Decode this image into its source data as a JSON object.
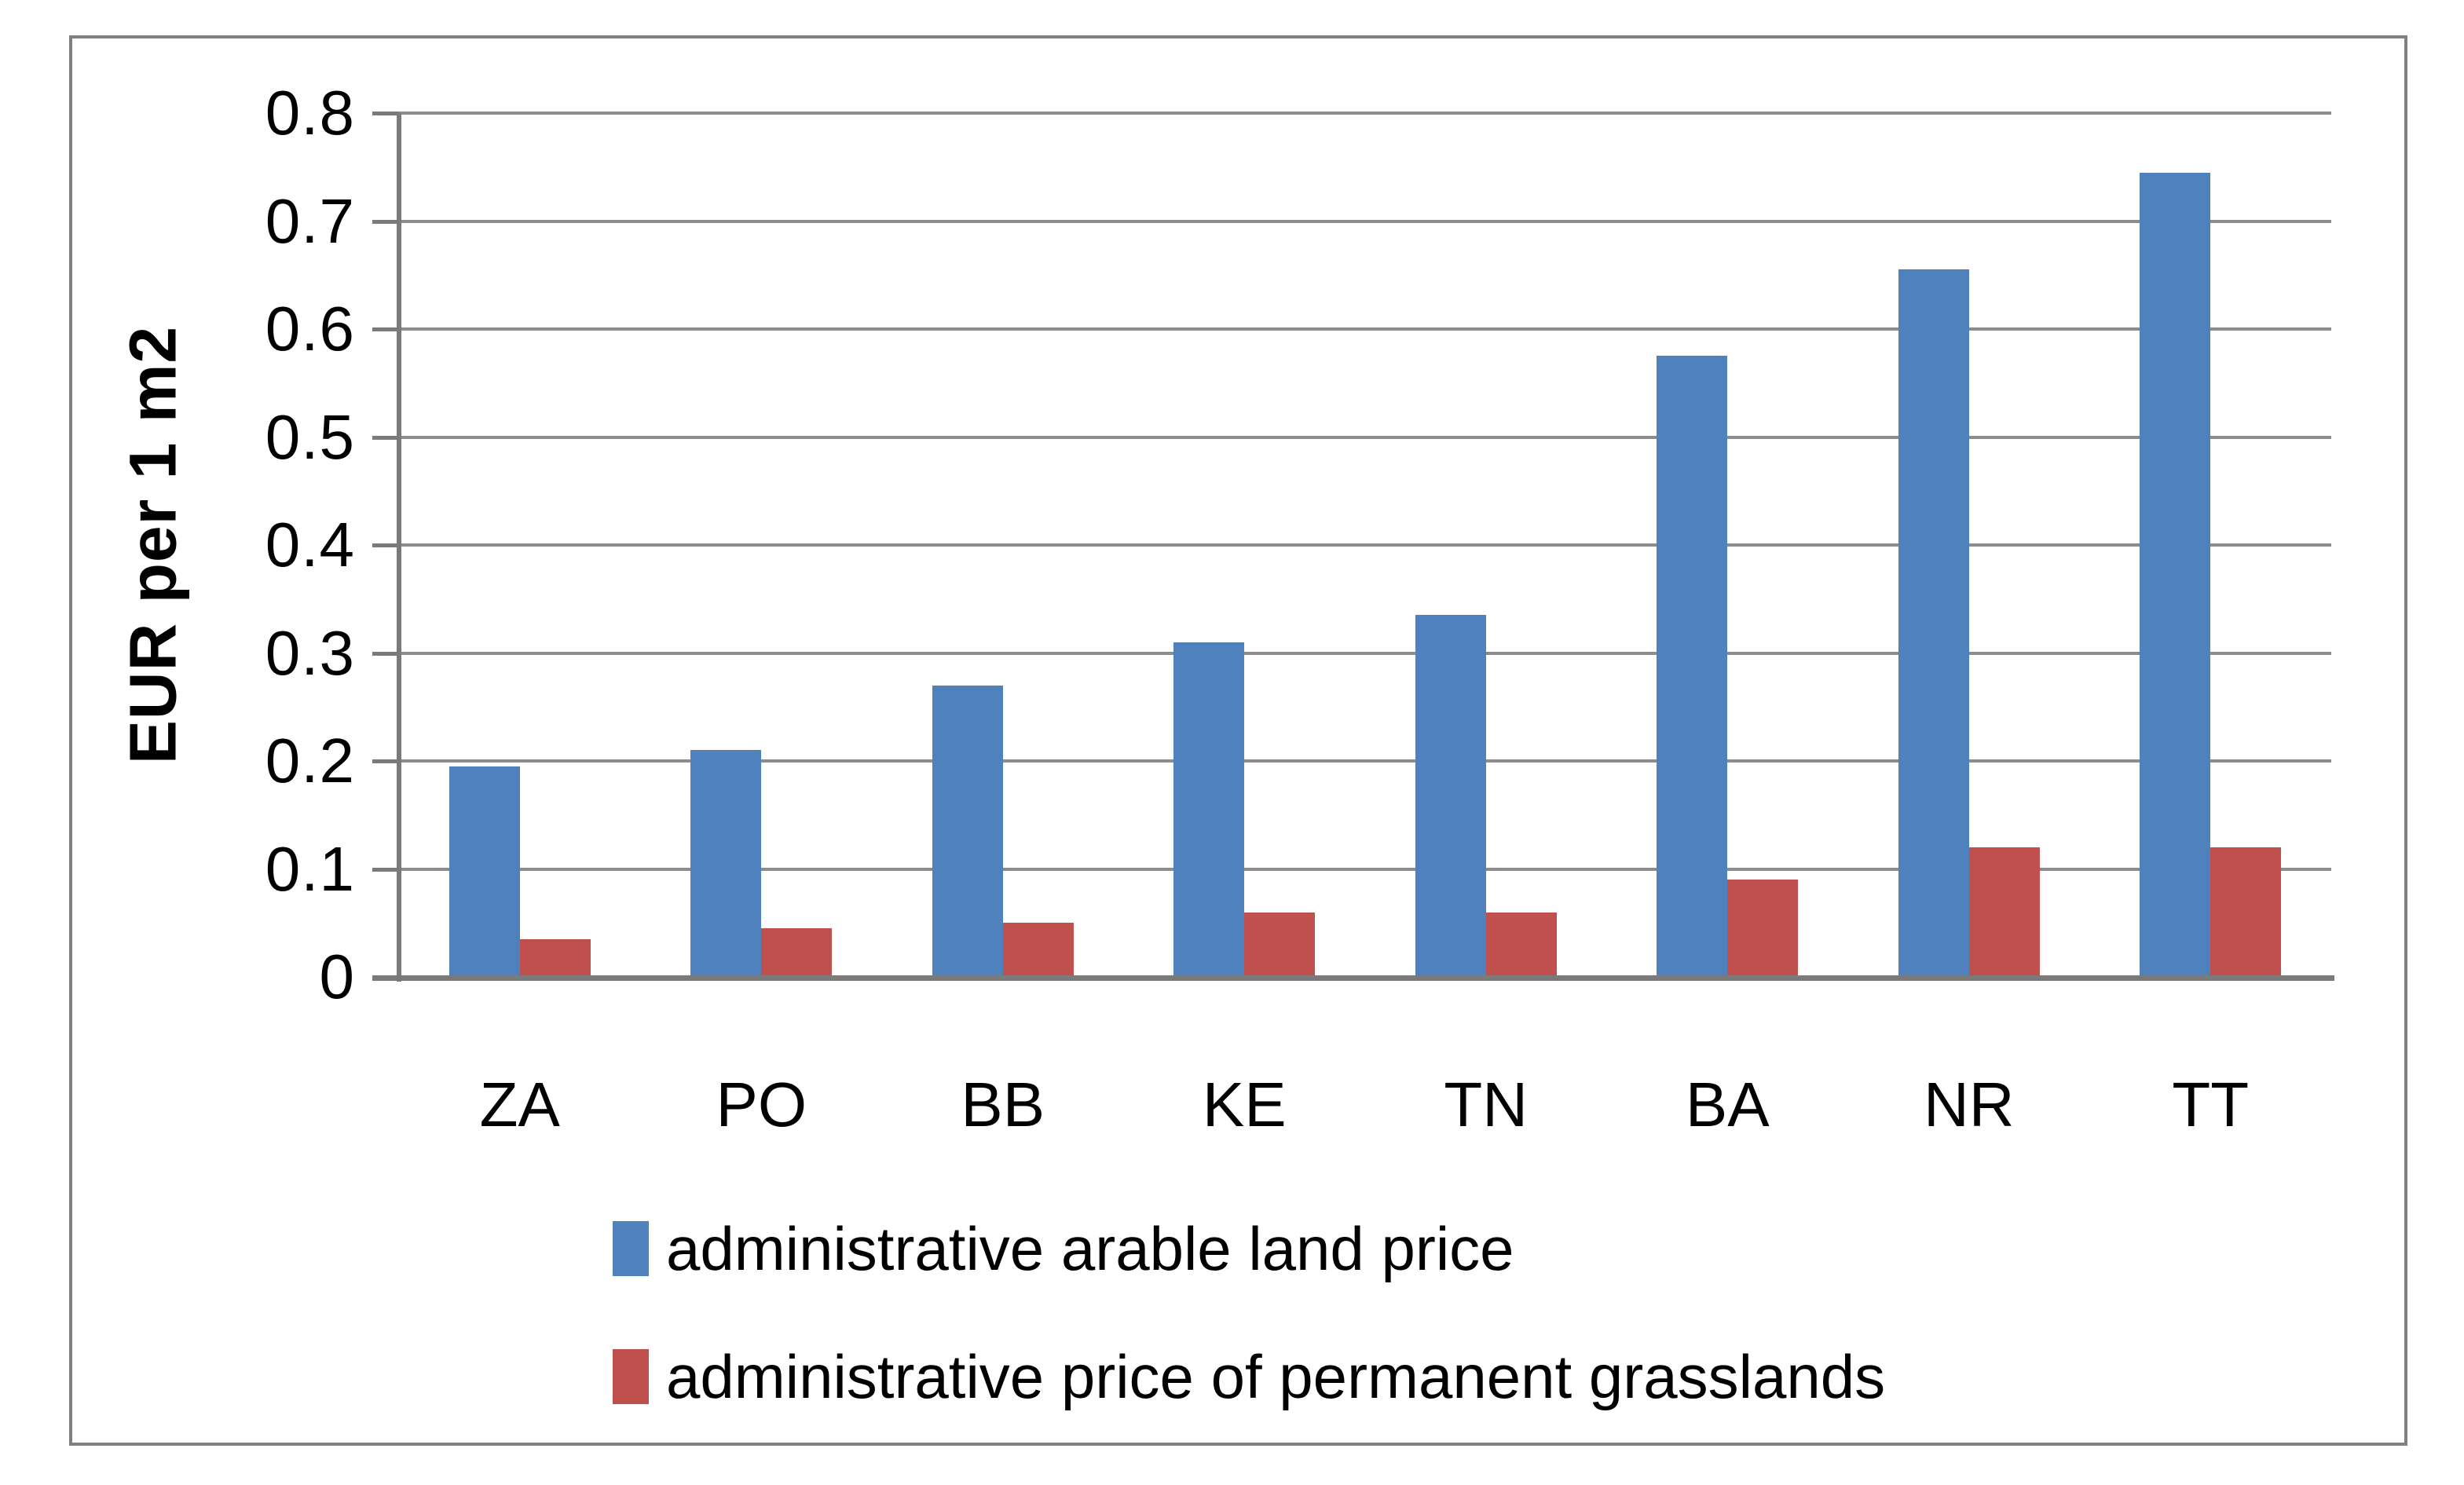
{
  "chart_data": {
    "type": "bar",
    "title": "",
    "categories": [
      "ZA",
      "PO",
      "BB",
      "KE",
      "TN",
      "BA",
      "NR",
      "TT"
    ],
    "series": [
      {
        "name": "administrative arable land price",
        "key": "arable",
        "color": "#4F81BD",
        "values": [
          0.195,
          0.21,
          0.27,
          0.31,
          0.335,
          0.575,
          0.655,
          0.745
        ]
      },
      {
        "name": "administrative price of permanent grasslands",
        "key": "grasslands",
        "color": "#C0504D",
        "values": [
          0.035,
          0.045,
          0.05,
          0.06,
          0.06,
          0.09,
          0.12,
          0.12
        ]
      }
    ],
    "xlabel": "",
    "ylabel": "EUR per 1 m2",
    "ylim": [
      0,
      0.8
    ],
    "ytick_step": 0.1,
    "ytick_labels": [
      "0",
      "0.1",
      "0.2",
      "0.3",
      "0.4",
      "0.5",
      "0.6",
      "0.7",
      "0.8"
    ],
    "grid": true,
    "legend_position": "bottom-left",
    "colors": {
      "gridline": "#8C8C8C",
      "axis": "#7A7A7A",
      "frame_border": "#808080",
      "background": "#FFFFFF",
      "text": "#000000"
    }
  }
}
